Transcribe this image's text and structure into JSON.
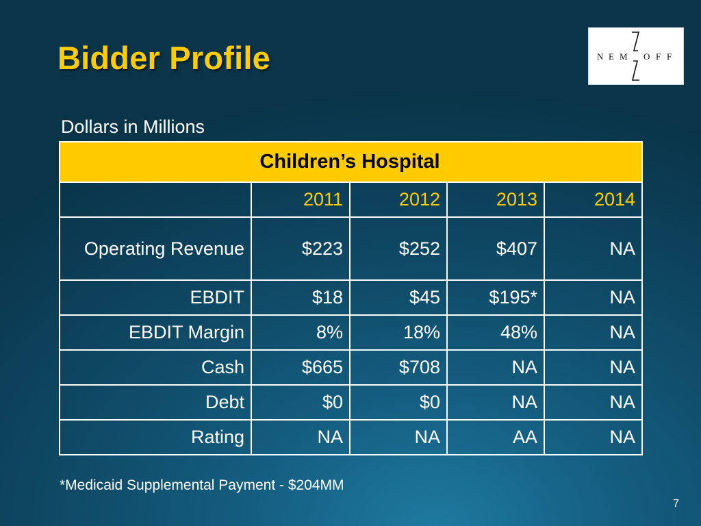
{
  "slide": {
    "title": "Bidder Profile",
    "subtitle": "Dollars in Millions",
    "footnote": "*Medicaid Supplemental Payment - $204MM",
    "page_number": "7",
    "logo_text": "NEMZOFF"
  },
  "table": {
    "banner": "Children’s Hospital",
    "corner": "",
    "years": [
      "2011",
      "2012",
      "2013",
      "2014"
    ],
    "rows": [
      {
        "label": "Operating Revenue",
        "values": [
          "$223",
          "$252",
          "$407",
          "NA"
        ]
      },
      {
        "label": "EBDIT",
        "values": [
          "$18",
          "$45",
          "$195*",
          "NA"
        ]
      },
      {
        "label": "EBDIT Margin",
        "values": [
          "8%",
          "18%",
          "48%",
          "NA"
        ]
      },
      {
        "label": "Cash",
        "values": [
          "$665",
          "$708",
          "NA",
          "NA"
        ]
      },
      {
        "label": "Debt",
        "values": [
          "$0",
          "$0",
          "NA",
          "NA"
        ]
      },
      {
        "label": "Rating",
        "values": [
          "NA",
          "NA",
          "AA",
          "NA"
        ]
      }
    ]
  },
  "colors": {
    "title": "#ffcc00",
    "banner_fill": "#ffcc00",
    "year_text": "#ffcc00",
    "background": "#0f4a66"
  }
}
